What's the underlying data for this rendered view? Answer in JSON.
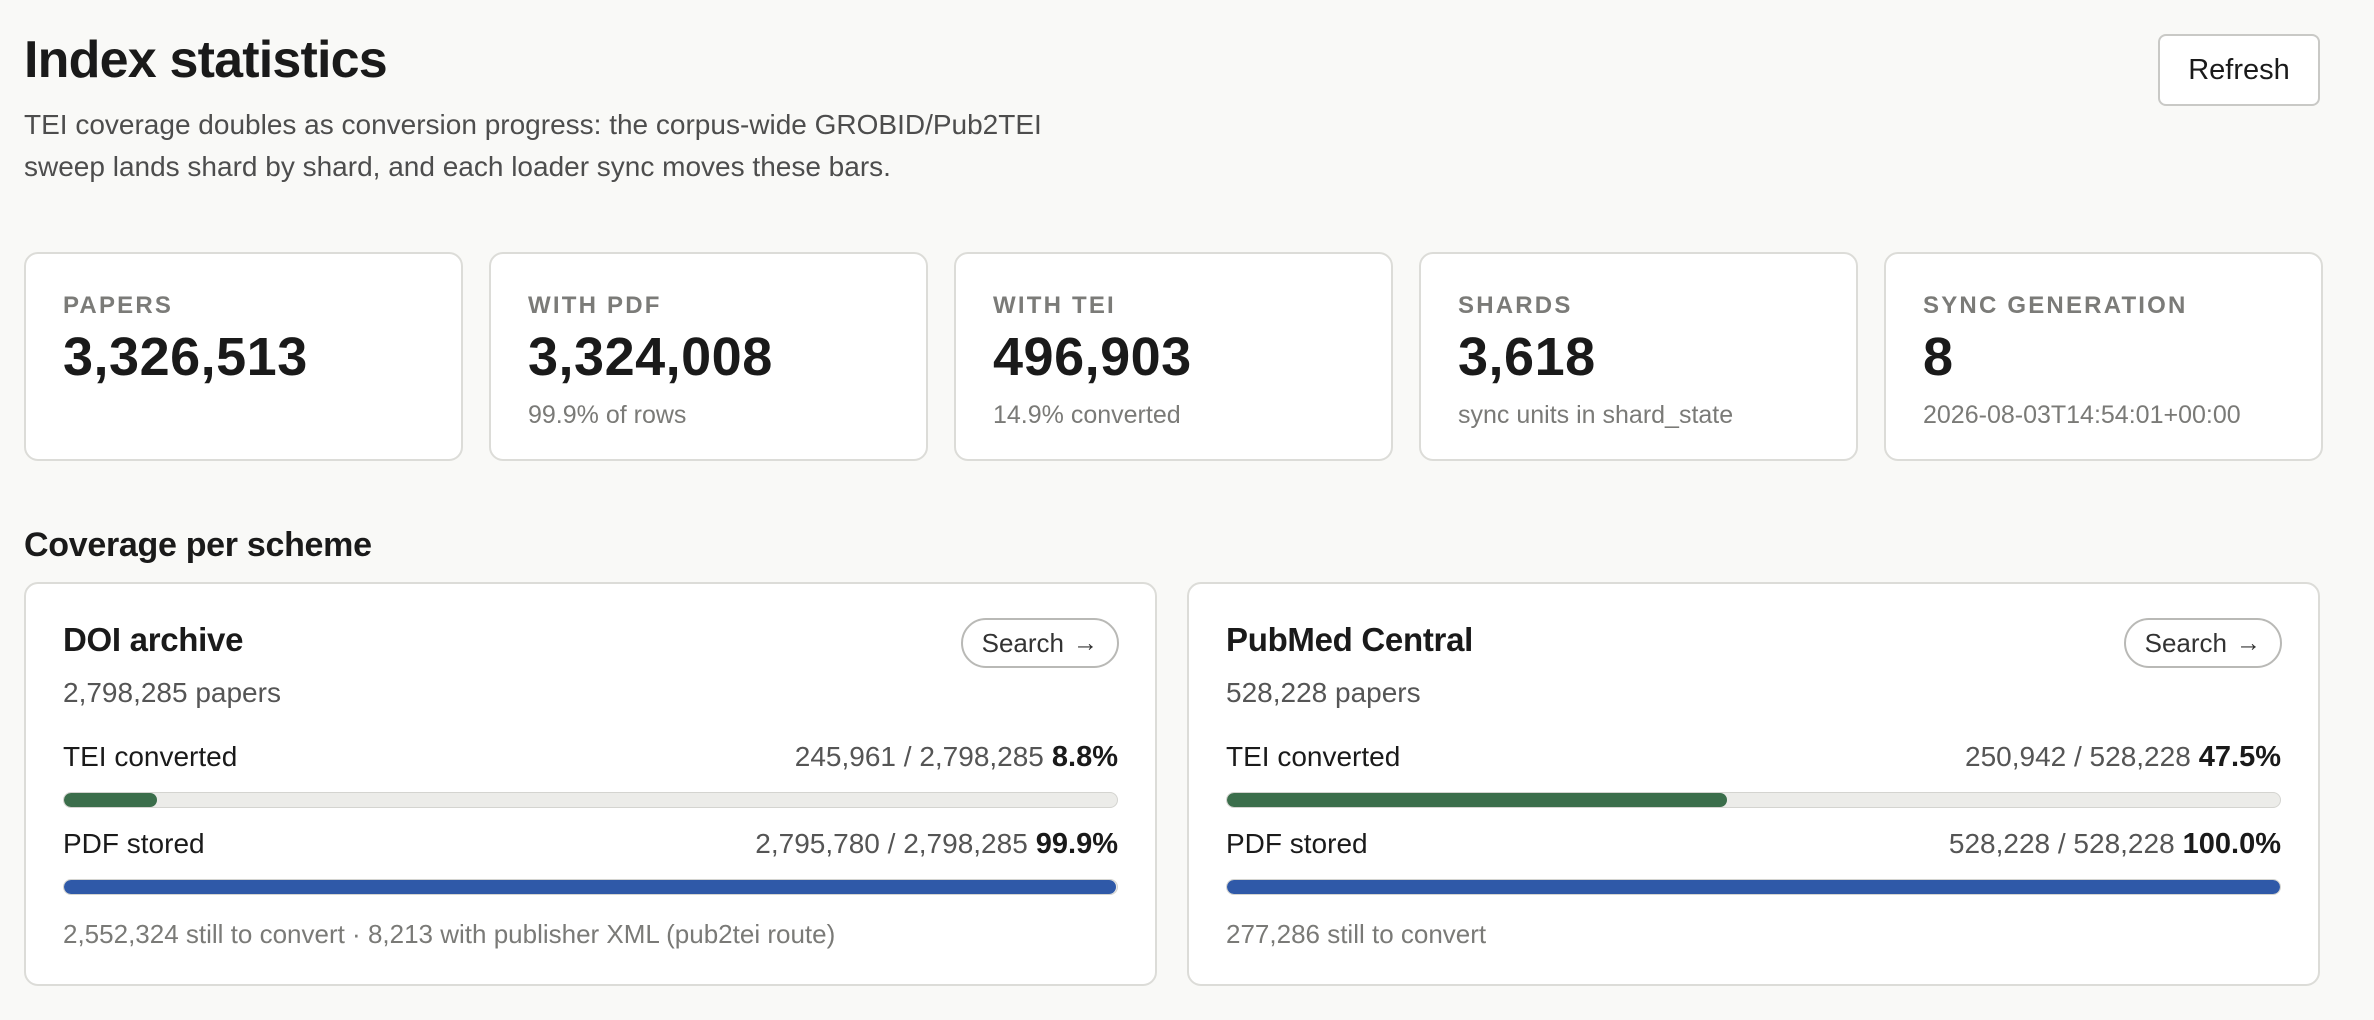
{
  "header": {
    "title": "Index statistics",
    "subtitle": "TEI coverage doubles as conversion progress: the corpus-wide GROBID/Pub2TEI sweep lands shard by shard, and each loader sync moves these bars.",
    "refresh_label": "Refresh"
  },
  "stats": [
    {
      "label": "PAPERS",
      "value": "3,326,513",
      "sub": ""
    },
    {
      "label": "WITH PDF",
      "value": "3,324,008",
      "sub": "99.9% of rows"
    },
    {
      "label": "WITH TEI",
      "value": "496,903",
      "sub": "14.9% converted"
    },
    {
      "label": "SHARDS",
      "value": "3,618",
      "sub": "sync units in shard_state"
    },
    {
      "label": "SYNC GENERATION",
      "value": "8",
      "sub": "2026-08-03T14:54:01+00:00"
    }
  ],
  "section_title": "Coverage per scheme",
  "schemes": [
    {
      "name": "DOI archive",
      "search_label": "Search",
      "search_icon": "arrow-right-icon",
      "count": "2,798,285 papers",
      "tei": {
        "label": "TEI converted",
        "ratio": "245,961 / 2,798,285",
        "pct": "8.8%",
        "fraction": 0.088
      },
      "pdf": {
        "label": "PDF stored",
        "ratio": "2,795,780 / 2,798,285",
        "pct": "99.9%",
        "fraction": 0.999
      },
      "note": "2,552,324 still to convert · 8,213 with publisher XML (pub2tei route)"
    },
    {
      "name": "PubMed Central",
      "search_label": "Search",
      "search_icon": "arrow-right-icon",
      "count": "528,228 papers",
      "tei": {
        "label": "TEI converted",
        "ratio": "250,942 / 528,228",
        "pct": "47.5%",
        "fraction": 0.475
      },
      "pdf": {
        "label": "PDF stored",
        "ratio": "528,228 / 528,228",
        "pct": "100.0%",
        "fraction": 1.0
      },
      "note": "277,286 still to convert"
    }
  ],
  "colors": {
    "tei_bar": "#3b6e4b",
    "pdf_bar": "#2f59a8"
  }
}
